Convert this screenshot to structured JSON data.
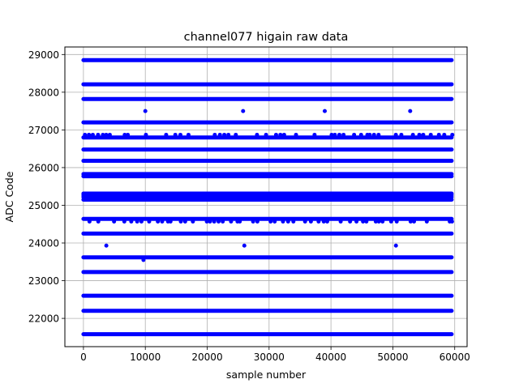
{
  "chart_data": {
    "type": "scatter",
    "title": "channel077 higain raw data",
    "xlabel": "sample number",
    "ylabel": "ADC Code",
    "xlim": [
      -3000,
      62000
    ],
    "ylim": [
      21250,
      29200
    ],
    "x_ticks": [
      0,
      10000,
      20000,
      30000,
      40000,
      50000,
      60000
    ],
    "y_ticks": [
      22000,
      23000,
      24000,
      25000,
      26000,
      27000,
      28000,
      29000
    ],
    "grid": true,
    "marker_color": "#0000ff",
    "x_range": [
      0,
      59500
    ],
    "levels": [
      {
        "y": 21580,
        "density": "continuous"
      },
      {
        "y": 22200,
        "density": "continuous"
      },
      {
        "y": 22600,
        "density": "continuous"
      },
      {
        "y": 23230,
        "density": "continuous"
      },
      {
        "y": 23620,
        "density": "continuous"
      },
      {
        "y": 24250,
        "density": "continuous"
      },
      {
        "y": 24640,
        "density": "continuous"
      },
      {
        "y": 24570,
        "density": "sparse"
      },
      {
        "y": 25150,
        "density": "continuous"
      },
      {
        "y": 25220,
        "density": "continuous"
      },
      {
        "y": 25270,
        "density": "continuous"
      },
      {
        "y": 25310,
        "density": "continuous"
      },
      {
        "y": 25770,
        "density": "continuous"
      },
      {
        "y": 25830,
        "density": "continuous"
      },
      {
        "y": 26180,
        "density": "continuous"
      },
      {
        "y": 26480,
        "density": "continuous"
      },
      {
        "y": 26800,
        "density": "continuous"
      },
      {
        "y": 26870,
        "density": "sparse"
      },
      {
        "y": 27200,
        "density": "continuous"
      },
      {
        "y": 27820,
        "density": "continuous"
      },
      {
        "y": 28210,
        "density": "continuous"
      },
      {
        "y": 28850,
        "density": "continuous"
      }
    ],
    "outliers": [
      {
        "x": 10000,
        "y": 27500
      },
      {
        "x": 25800,
        "y": 27500
      },
      {
        "x": 39000,
        "y": 27500
      },
      {
        "x": 52800,
        "y": 27500
      },
      {
        "x": 3700,
        "y": 23930
      },
      {
        "x": 26000,
        "y": 23930
      },
      {
        "x": 50500,
        "y": 23930
      },
      {
        "x": 9700,
        "y": 23550
      }
    ]
  }
}
